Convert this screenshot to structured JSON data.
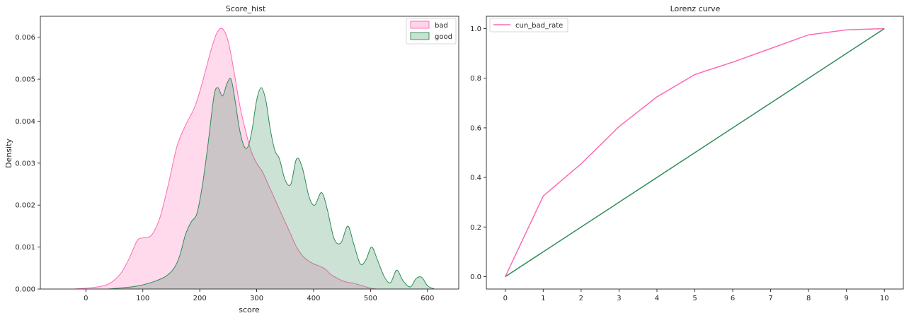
{
  "chart_data": [
    {
      "type": "area",
      "title": "Score_hist",
      "xlabel": "score",
      "ylabel": "Density",
      "xlim": [
        -80,
        655
      ],
      "ylim": [
        0,
        0.0065
      ],
      "xticks": [
        0,
        100,
        200,
        300,
        400,
        500,
        600
      ],
      "yticks": [
        0.0,
        0.001,
        0.002,
        0.003,
        0.004,
        0.005,
        0.006
      ],
      "ytick_labels": [
        "0.000",
        "0.001",
        "0.002",
        "0.003",
        "0.004",
        "0.005",
        "0.006"
      ],
      "grid": false,
      "legend": "top-right",
      "series": [
        {
          "name": "bad",
          "color": "#ff69b4",
          "fill": "#ffd3ea",
          "x": [
            -20,
            0,
            20,
            40,
            60,
            75,
            90,
            100,
            115,
            130,
            145,
            160,
            175,
            190,
            200,
            210,
            220,
            230,
            240,
            250,
            260,
            270,
            280,
            290,
            300,
            310,
            320,
            330,
            340,
            350,
            360,
            370,
            380,
            390,
            400,
            410,
            420,
            430,
            440,
            450,
            460,
            470,
            480,
            490,
            500,
            510
          ],
          "y": [
            0.0,
            2e-05,
            5e-05,
            0.00012,
            0.00035,
            0.0007,
            0.00115,
            0.00122,
            0.00128,
            0.0017,
            0.0025,
            0.0034,
            0.0039,
            0.0043,
            0.0047,
            0.0052,
            0.0057,
            0.0061,
            0.0062,
            0.0059,
            0.0052,
            0.0044,
            0.0038,
            0.0033,
            0.003,
            0.0028,
            0.0025,
            0.0022,
            0.0019,
            0.0016,
            0.0013,
            0.001,
            0.0008,
            0.00068,
            0.0006,
            0.00055,
            0.00048,
            0.00035,
            0.00027,
            0.0002,
            0.00016,
            0.00014,
            0.0001,
            6e-05,
            2e-05,
            0.0
          ]
        },
        {
          "name": "good",
          "color": "#2e8b57",
          "fill": "#c9e1d2",
          "x": [
            40,
            80,
            100,
            120,
            140,
            155,
            165,
            175,
            185,
            195,
            205,
            215,
            225,
            232,
            240,
            248,
            255,
            262,
            270,
            278,
            285,
            292,
            300,
            308,
            316,
            324,
            332,
            340,
            350,
            360,
            370,
            380,
            392,
            402,
            414,
            424,
            436,
            448,
            460,
            470,
            482,
            492,
            502,
            512,
            524,
            535,
            546,
            557,
            570,
            580,
            590,
            600,
            612
          ],
          "y": [
            0.0,
            5e-05,
            0.0001,
            0.00018,
            0.0003,
            0.0005,
            0.0008,
            0.0013,
            0.0016,
            0.0018,
            0.0025,
            0.0035,
            0.0046,
            0.0048,
            0.0046,
            0.0049,
            0.005,
            0.0045,
            0.0038,
            0.0034,
            0.0034,
            0.0038,
            0.0045,
            0.0048,
            0.0045,
            0.0038,
            0.0033,
            0.0031,
            0.0026,
            0.0025,
            0.0031,
            0.0029,
            0.0022,
            0.002,
            0.0023,
            0.0019,
            0.0012,
            0.0011,
            0.0015,
            0.0011,
            0.0006,
            0.0007,
            0.001,
            0.0007,
            0.0003,
            0.00015,
            0.00045,
            0.0002,
            5e-05,
            0.00025,
            0.00028,
            8e-05,
            0.0
          ]
        }
      ]
    },
    {
      "type": "line",
      "title": "Lorenz curve",
      "xlabel": "",
      "ylabel": "",
      "xlim": [
        -0.5,
        10.5
      ],
      "ylim": [
        -0.05,
        1.05
      ],
      "xticks": [
        0,
        1,
        2,
        3,
        4,
        5,
        6,
        7,
        8,
        9,
        10
      ],
      "yticks": [
        0.0,
        0.2,
        0.4,
        0.6,
        0.8,
        1.0
      ],
      "ytick_labels": [
        "0.0",
        "0.2",
        "0.4",
        "0.6",
        "0.8",
        "1.0"
      ],
      "grid": false,
      "legend": "top-left",
      "series": [
        {
          "name": "cun_bad_rate",
          "color": "#ff69b4",
          "x": [
            0,
            1,
            2,
            3,
            4,
            5,
            6,
            7,
            8,
            9,
            10
          ],
          "y": [
            0.0,
            0.325,
            0.455,
            0.605,
            0.725,
            0.815,
            0.865,
            0.92,
            0.975,
            0.995,
            1.0
          ]
        },
        {
          "color": "#2e8b57",
          "x": [
            0,
            10
          ],
          "y": [
            0.0,
            1.0
          ]
        }
      ]
    }
  ]
}
